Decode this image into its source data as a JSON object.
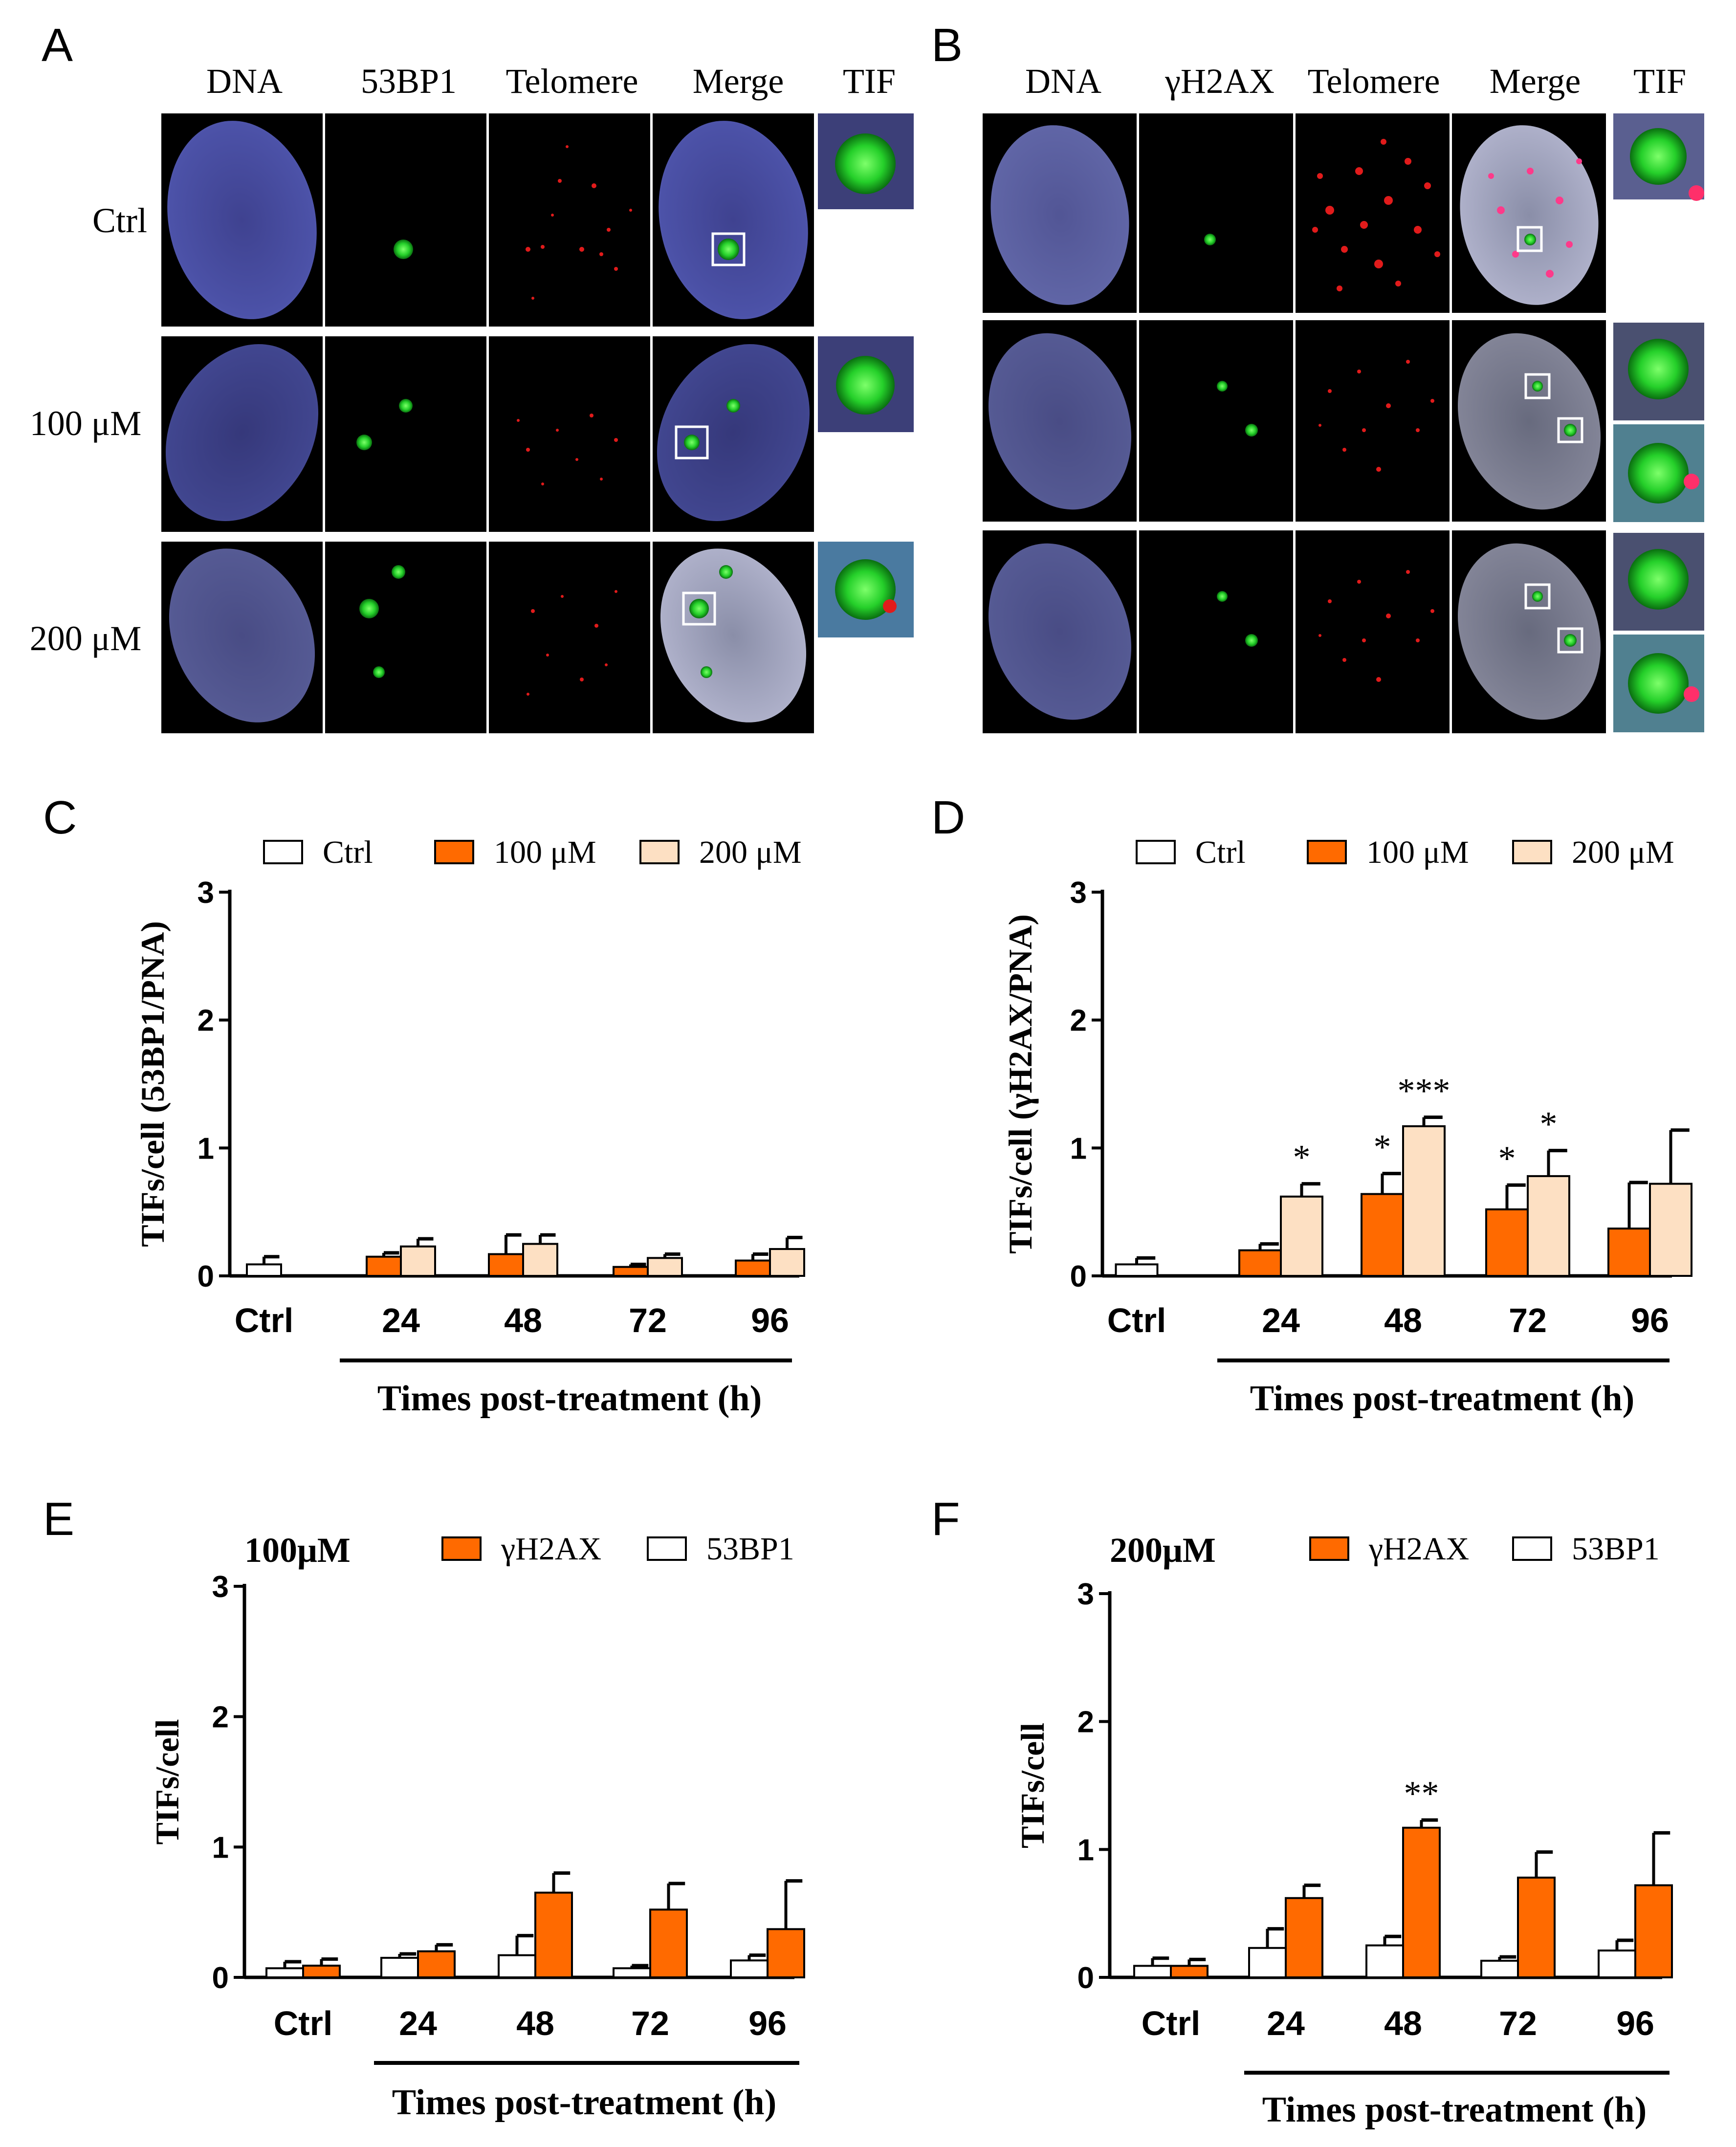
{
  "colors": {
    "ctrl": "#ffffff",
    "c100": "#ff6a00",
    "c200": "#fde0c3",
    "gh2ax": "#ff6a00",
    "p53bp1": "#ffffff",
    "dna": "#4c4fa0",
    "green": "#25d02a",
    "red": "#e11b1b",
    "bg": "#000000"
  },
  "panelA": {
    "label": "A",
    "columns": [
      "DNA",
      "53BP1",
      "Telomere",
      "Merge",
      "TIF"
    ],
    "rows": [
      "Ctrl",
      "100 μM",
      "200 μM"
    ]
  },
  "panelB": {
    "label": "B",
    "columns": [
      "DNA",
      "γH2AX",
      "Telomere",
      "Merge",
      "TIF"
    ]
  },
  "chart_data": [
    {
      "panel": "C",
      "type": "bar",
      "categories": [
        "Ctrl",
        "24",
        "48",
        "72",
        "96"
      ],
      "series": [
        {
          "name": "Ctrl",
          "values": [
            0.09,
            null,
            null,
            null,
            null
          ],
          "errors": [
            0.06,
            null,
            null,
            null,
            null
          ]
        },
        {
          "name": "100 μM",
          "values": [
            null,
            0.15,
            0.17,
            0.07,
            0.12
          ],
          "errors": [
            null,
            0.03,
            0.15,
            0.02,
            0.05
          ]
        },
        {
          "name": "200 μM",
          "values": [
            null,
            0.23,
            0.25,
            0.14,
            0.21
          ],
          "errors": [
            null,
            0.06,
            0.07,
            0.03,
            0.09
          ]
        }
      ],
      "sig": [],
      "xlabel": "Times post-treatment (h)",
      "ylabel": "TIFs/cell (53BP1/PNA)",
      "title": "",
      "ylim": [
        0,
        3
      ],
      "yticks": [
        "0",
        "1",
        "2",
        "3"
      ]
    },
    {
      "panel": "D",
      "type": "bar",
      "categories": [
        "Ctrl",
        "24",
        "48",
        "72",
        "96"
      ],
      "series": [
        {
          "name": "Ctrl",
          "values": [
            0.09,
            null,
            null,
            null,
            null
          ],
          "errors": [
            0.05,
            null,
            null,
            null,
            null
          ]
        },
        {
          "name": "100 μM",
          "values": [
            null,
            0.2,
            0.64,
            0.52,
            0.37
          ],
          "errors": [
            null,
            0.05,
            0.16,
            0.19,
            0.36
          ]
        },
        {
          "name": "200 μM",
          "values": [
            null,
            0.62,
            1.17,
            0.78,
            0.72
          ],
          "errors": [
            null,
            0.1,
            0.07,
            0.2,
            0.42
          ]
        }
      ],
      "sig": [
        {
          "cat": 1,
          "series": 2,
          "text": "*"
        },
        {
          "cat": 2,
          "series": 1,
          "text": "*"
        },
        {
          "cat": 2,
          "series": 2,
          "text": "***"
        },
        {
          "cat": 3,
          "series": 1,
          "text": "*"
        },
        {
          "cat": 3,
          "series": 2,
          "text": "*"
        }
      ],
      "xlabel": "Times post-treatment (h)",
      "ylabel": "TIFs/cell (γH2AX/PNA)",
      "title": "",
      "ylim": [
        0,
        3
      ],
      "yticks": [
        "0",
        "1",
        "2",
        "3"
      ]
    },
    {
      "panel": "E",
      "type": "bar",
      "title": "100μM",
      "categories": [
        "Ctrl",
        "24",
        "48",
        "72",
        "96"
      ],
      "series": [
        {
          "name": "53BP1",
          "values": [
            0.07,
            0.15,
            0.17,
            0.07,
            0.13
          ],
          "errors": [
            0.05,
            0.03,
            0.15,
            0.02,
            0.04
          ]
        },
        {
          "name": "γH2AX",
          "values": [
            0.09,
            0.2,
            0.65,
            0.52,
            0.37
          ],
          "errors": [
            0.05,
            0.05,
            0.15,
            0.2,
            0.37
          ]
        }
      ],
      "legend_order": [
        1,
        0
      ],
      "sig": [],
      "xlabel": "Times post-treatment (h)",
      "ylabel": "TIFs/cell",
      "ylim": [
        0,
        3
      ],
      "yticks": [
        "0",
        "1",
        "2",
        "3"
      ]
    },
    {
      "panel": "F",
      "type": "bar",
      "title": "200μM",
      "categories": [
        "Ctrl",
        "24",
        "48",
        "72",
        "96"
      ],
      "series": [
        {
          "name": "53BP1",
          "values": [
            0.09,
            0.23,
            0.25,
            0.13,
            0.21
          ],
          "errors": [
            0.06,
            0.15,
            0.07,
            0.03,
            0.08
          ]
        },
        {
          "name": "γH2AX",
          "values": [
            0.09,
            0.62,
            1.17,
            0.78,
            0.72
          ],
          "errors": [
            0.05,
            0.1,
            0.06,
            0.2,
            0.41
          ]
        }
      ],
      "legend_order": [
        1,
        0
      ],
      "sig": [
        {
          "cat": 2,
          "series": 1,
          "text": "**"
        }
      ],
      "xlabel": "Times post-treatment (h)",
      "ylabel": "TIFs/cell",
      "ylim": [
        0,
        3
      ],
      "yticks": [
        "0",
        "1",
        "2",
        "3"
      ]
    }
  ]
}
